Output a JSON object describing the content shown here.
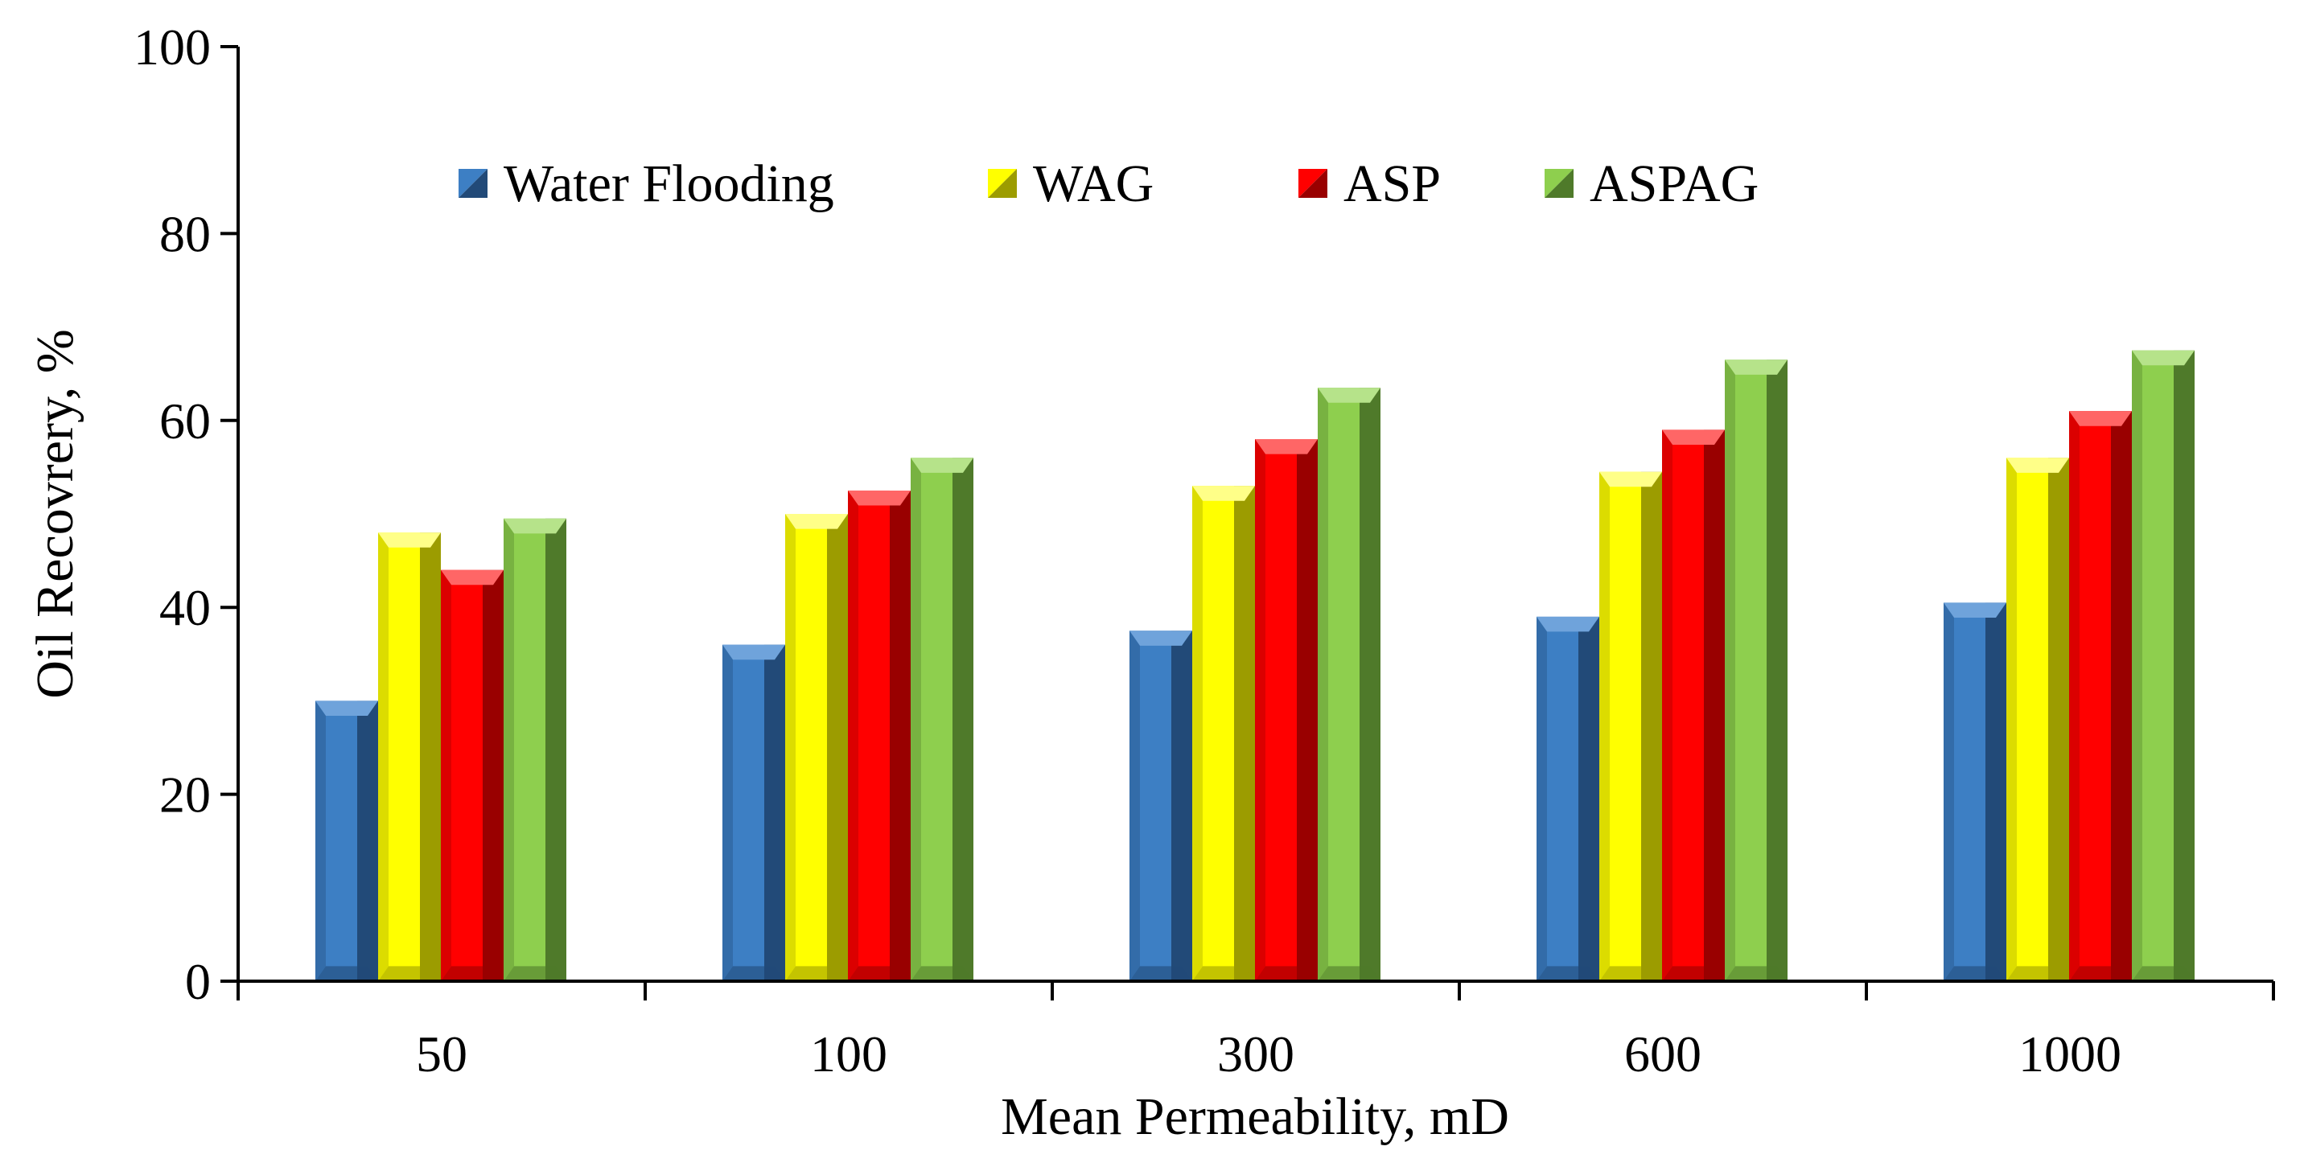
{
  "chart_data": {
    "type": "bar",
    "title": "",
    "xlabel": "Mean Permeability, mD",
    "ylabel": "Oil Recovrery, %",
    "categories": [
      "50",
      "100",
      "300",
      "600",
      "1000"
    ],
    "ylim": [
      0,
      100
    ],
    "yticks": [
      "0",
      "20",
      "40",
      "60",
      "80",
      "100"
    ],
    "grid": false,
    "legend_position": "top-center",
    "series": [
      {
        "name": "Water Flooding",
        "values": [
          30,
          36,
          37.5,
          39,
          40.5
        ],
        "front_color": "#3d7fc4",
        "side_color": "#224a78",
        "top_color": "#6fa3db"
      },
      {
        "name": "WAG",
        "values": [
          48,
          50,
          53,
          54.5,
          56
        ],
        "front_color": "#ffff00",
        "side_color": "#9c9c00",
        "top_color": "#ffff88"
      },
      {
        "name": "ASP",
        "values": [
          44,
          52.5,
          58,
          59,
          61
        ],
        "front_color": "#ff0000",
        "side_color": "#990000",
        "top_color": "#ff6666"
      },
      {
        "name": "ASPAG",
        "values": [
          49.5,
          56,
          63.5,
          66.5,
          67.5
        ],
        "front_color": "#8ecf4e",
        "side_color": "#4f7a2a",
        "top_color": "#b6e38a"
      }
    ]
  }
}
